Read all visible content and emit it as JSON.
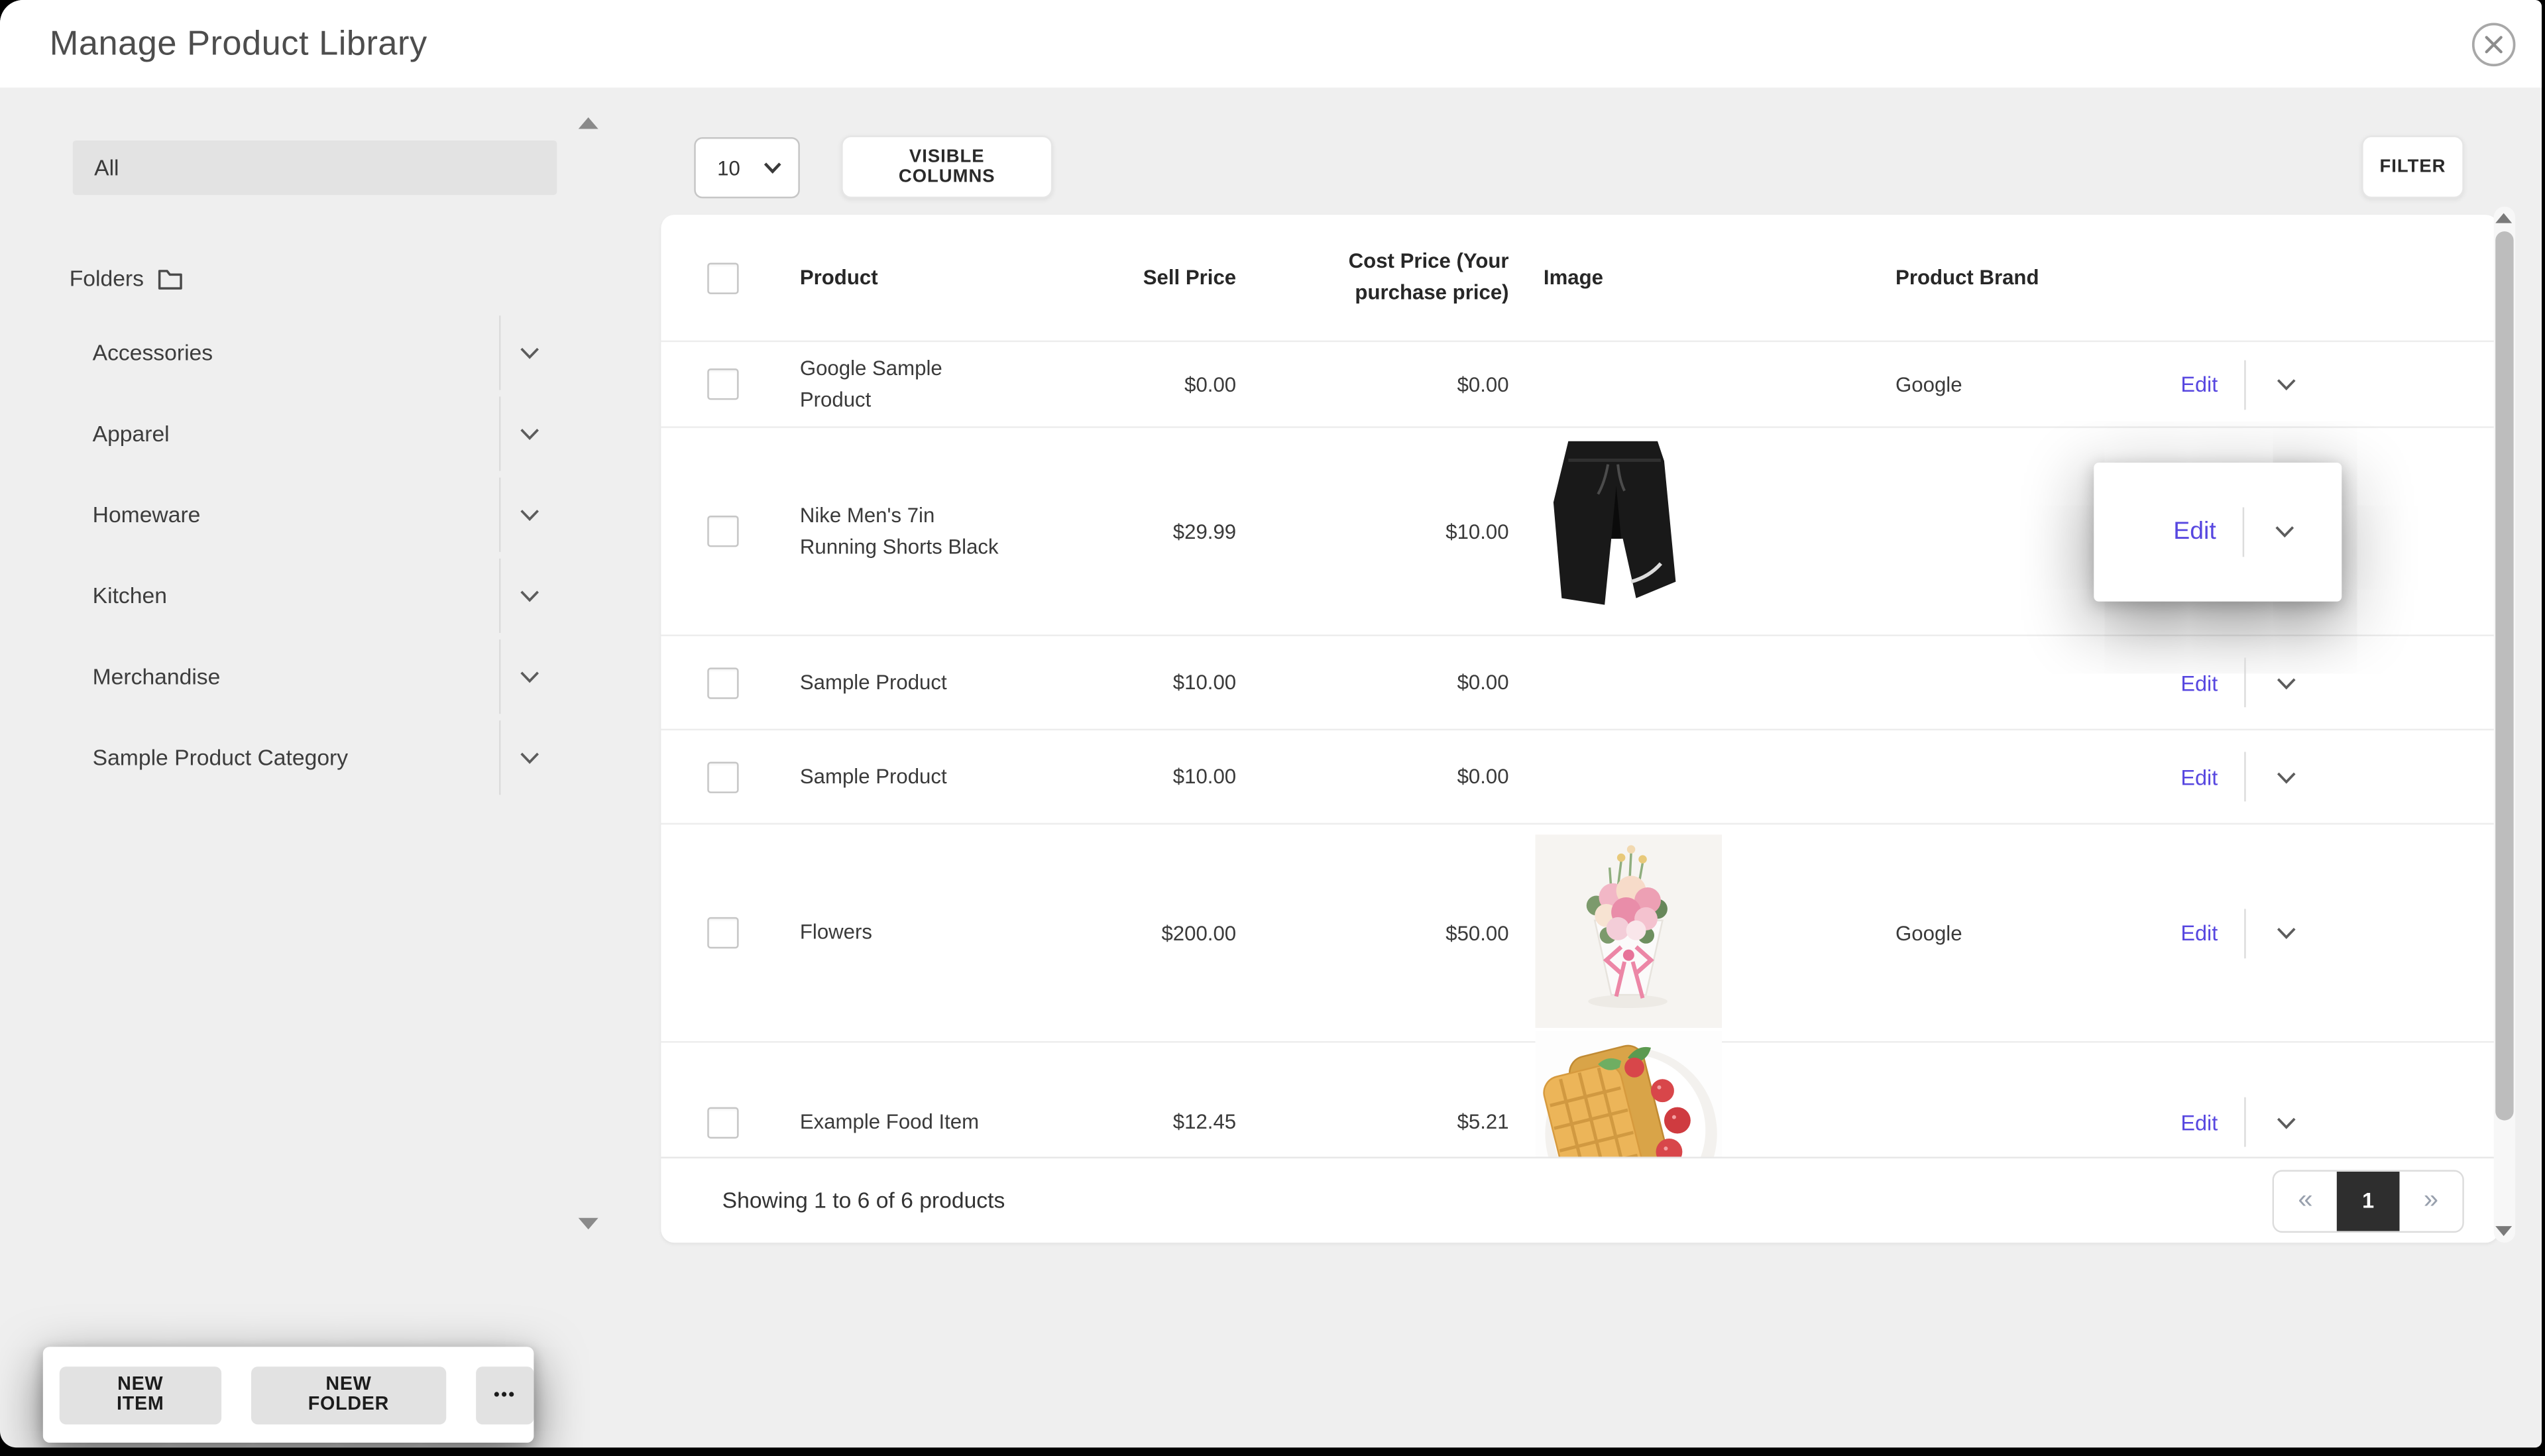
{
  "modal": {
    "title": "Manage Product Library"
  },
  "icons": {
    "close": "circle-x",
    "folder": "folder-outline",
    "chevron_down": "chevron-down",
    "scroll_up": "triangle-up",
    "scroll_down": "triangle-down"
  },
  "sidebar": {
    "all_label": "All",
    "folders_label": "Folders",
    "folders": [
      {
        "name": "Accessories"
      },
      {
        "name": "Apparel"
      },
      {
        "name": "Homeware"
      },
      {
        "name": "Kitchen"
      },
      {
        "name": "Merchandise"
      },
      {
        "name": "Sample Product Category"
      }
    ]
  },
  "toolbar": {
    "page_size": "10",
    "visible_columns_label": "VISIBLE COLUMNS",
    "filter_label": "FILTER"
  },
  "table": {
    "columns": {
      "product": "Product",
      "sell_price": "Sell Price",
      "cost_price": "Cost Price (Your purchase price)",
      "image": "Image",
      "brand": "Product Brand"
    },
    "edit_label": "Edit",
    "rows": [
      {
        "product": "Google Sample Product",
        "sell_price": "$0.00",
        "cost_price": "$0.00",
        "image": "",
        "brand": "Google",
        "highlighted": false
      },
      {
        "product": "Nike Men's 7in Running Shorts Black",
        "sell_price": "$29.99",
        "cost_price": "$10.00",
        "image": "shorts",
        "brand": "",
        "highlighted": true
      },
      {
        "product": "Sample Product",
        "sell_price": "$10.00",
        "cost_price": "$0.00",
        "image": "",
        "brand": "",
        "highlighted": false
      },
      {
        "product": "Sample Product",
        "sell_price": "$10.00",
        "cost_price": "$0.00",
        "image": "",
        "brand": "",
        "highlighted": false
      },
      {
        "product": "Flowers",
        "sell_price": "$200.00",
        "cost_price": "$50.00",
        "image": "flowers",
        "brand": "Google",
        "highlighted": false
      },
      {
        "product": "Example Food Item",
        "sell_price": "$12.45",
        "cost_price": "$5.21",
        "image": "waffle",
        "brand": "",
        "highlighted": false
      }
    ]
  },
  "footer": {
    "summary": "Showing 1 to 6 of 6 products",
    "pagination": {
      "prev": "«",
      "current": "1",
      "next": "»"
    }
  },
  "actions": {
    "new_item": "NEW ITEM",
    "new_folder": "NEW FOLDER",
    "more": "•••"
  },
  "colors": {
    "accent": "#5747e0",
    "pagination_active_bg": "#2e2e2e",
    "body_bg": "#efefef"
  }
}
